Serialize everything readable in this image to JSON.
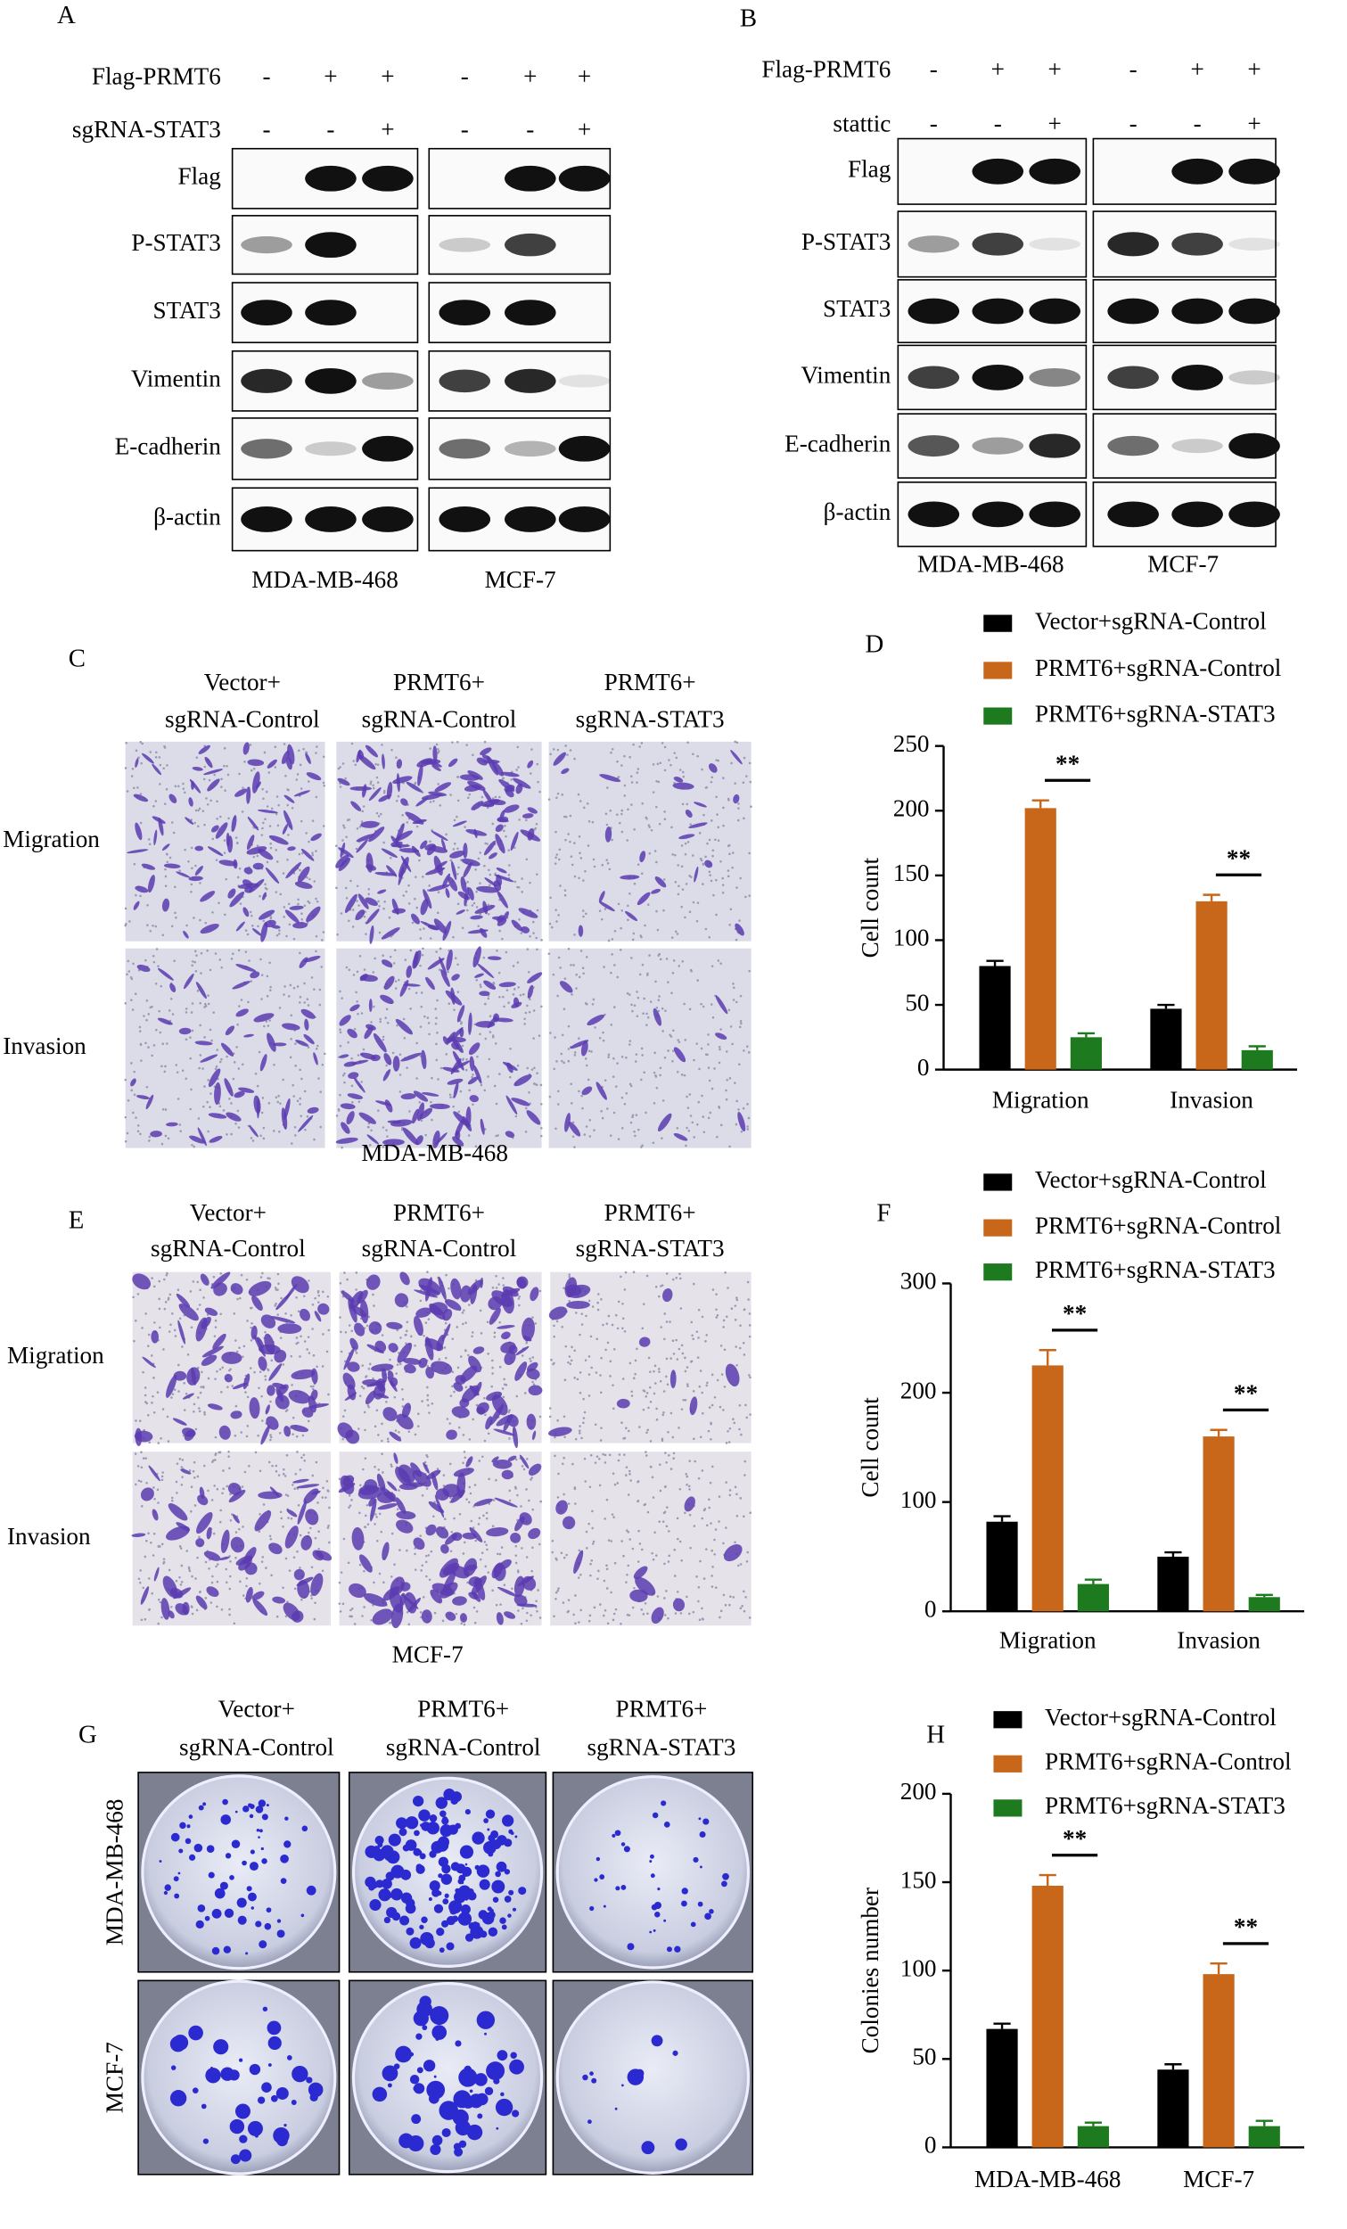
{
  "panels": {
    "A": {
      "label": "A",
      "treatments": [
        {
          "name": "Flag-PRMT6",
          "marks": [
            "-",
            "+",
            "+",
            "-",
            "+",
            "+"
          ]
        },
        {
          "name": "sgRNA-STAT3",
          "marks": [
            "-",
            "-",
            "+",
            "-",
            "-",
            "+"
          ]
        }
      ],
      "blots": [
        "Flag",
        "P-STAT3",
        "STAT3",
        "Vimentin",
        "E-cadherin",
        "β-actin"
      ],
      "cell_lines": [
        "MDA-MB-468",
        "MCF-7"
      ]
    },
    "B": {
      "label": "B",
      "treatments": [
        {
          "name": "Flag-PRMT6",
          "marks": [
            "-",
            "+",
            "+",
            "-",
            "+",
            "+"
          ]
        },
        {
          "name": "stattic",
          "marks": [
            "-",
            "-",
            "+",
            "-",
            "-",
            "+"
          ]
        }
      ],
      "blots": [
        "Flag",
        "P-STAT3",
        "STAT3",
        "Vimentin",
        "E-cadherin",
        "β-actin"
      ],
      "cell_lines": [
        "MDA-MB-468",
        "MCF-7"
      ]
    },
    "C": {
      "label": "C",
      "groups": [
        [
          "Vector+",
          "sgRNA-Control"
        ],
        [
          "PRMT6+",
          "sgRNA-Control"
        ],
        [
          "PRMT6+",
          "sgRNA-STAT3"
        ]
      ],
      "rows": [
        "Migration",
        "Invasion"
      ],
      "cell_line": "MDA-MB-468"
    },
    "E": {
      "label": "E",
      "groups": [
        [
          "Vector+",
          "sgRNA-Control"
        ],
        [
          "PRMT6+",
          "sgRNA-Control"
        ],
        [
          "PRMT6+",
          "sgRNA-STAT3"
        ]
      ],
      "rows": [
        "Migration",
        "Invasion"
      ],
      "cell_line": "MCF-7"
    },
    "G": {
      "label": "G",
      "groups": [
        [
          "Vector+",
          "sgRNA-Control"
        ],
        [
          "PRMT6+",
          "sgRNA-Control"
        ],
        [
          "PRMT6+",
          "sgRNA-STAT3"
        ]
      ],
      "rows": [
        "MDA-MB-468",
        "MCF-7"
      ]
    }
  },
  "chart_data": [
    {
      "type": "bar",
      "label": "D",
      "y_label": "Cell count",
      "categories": [
        "Migration",
        "Invasion"
      ],
      "series": [
        {
          "name": "Vector+sgRNA-Control",
          "color": "#000000",
          "values": [
            80,
            47
          ],
          "errors": [
            4,
            3
          ]
        },
        {
          "name": "PRMT6+sgRNA-Control",
          "color": "#c8661a",
          "values": [
            202,
            130
          ],
          "errors": [
            6,
            5
          ]
        },
        {
          "name": "PRMT6+sgRNA-STAT3",
          "color": "#1e7a1e",
          "values": [
            25,
            15
          ],
          "errors": [
            3,
            3
          ]
        }
      ],
      "significance": [
        "**",
        "**"
      ],
      "ylim": [
        0,
        250
      ],
      "yticks": [
        0,
        50,
        100,
        150,
        200,
        250
      ]
    },
    {
      "type": "bar",
      "label": "F",
      "y_label": "Cell count",
      "categories": [
        "Migration",
        "Invasion"
      ],
      "series": [
        {
          "name": "Vector+sgRNA-Control",
          "color": "#000000",
          "values": [
            82,
            50
          ],
          "errors": [
            5,
            4
          ]
        },
        {
          "name": "PRMT6+sgRNA-Control",
          "color": "#c8661a",
          "values": [
            225,
            160
          ],
          "errors": [
            14,
            6
          ]
        },
        {
          "name": "PRMT6+sgRNA-STAT3",
          "color": "#1e7a1e",
          "values": [
            25,
            13
          ],
          "errors": [
            4,
            2
          ]
        }
      ],
      "significance": [
        "**",
        "**"
      ],
      "ylim": [
        0,
        300
      ],
      "yticks": [
        0,
        100,
        200,
        300
      ]
    },
    {
      "type": "bar",
      "label": "H",
      "y_label": "Colonies number",
      "categories": [
        "MDA-MB-468",
        "MCF-7"
      ],
      "series": [
        {
          "name": "Vector+sgRNA-Control",
          "color": "#000000",
          "values": [
            67,
            44
          ],
          "errors": [
            3,
            3
          ]
        },
        {
          "name": "PRMT6+sgRNA-Control",
          "color": "#c8661a",
          "values": [
            148,
            98
          ],
          "errors": [
            6,
            6
          ]
        },
        {
          "name": "PRMT6+sgRNA-STAT3",
          "color": "#1e7a1e",
          "values": [
            12,
            12
          ],
          "errors": [
            2,
            3
          ]
        }
      ],
      "significance": [
        "**",
        "**"
      ],
      "ylim": [
        0,
        200
      ],
      "yticks": [
        0,
        50,
        100,
        150,
        200
      ]
    }
  ]
}
